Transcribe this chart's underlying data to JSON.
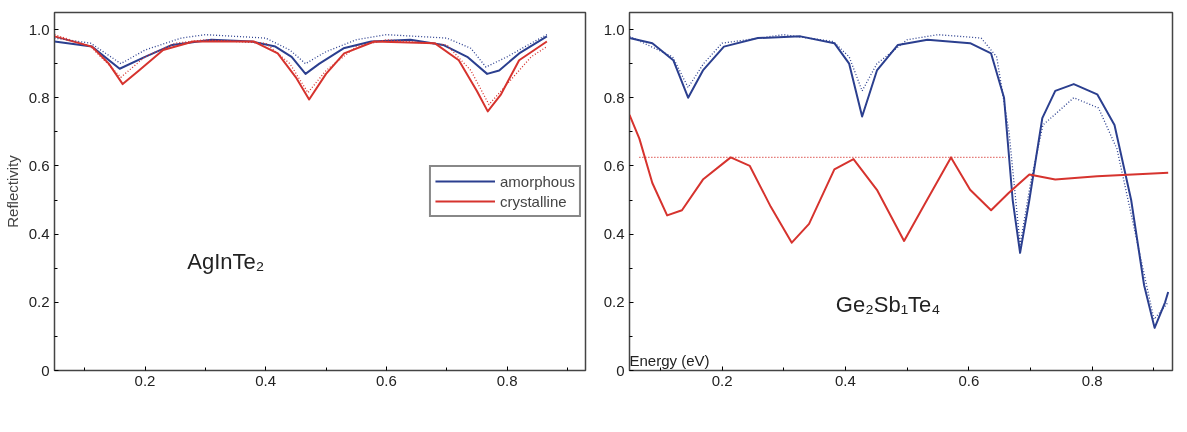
{
  "chart_data": [
    {
      "type": "line",
      "ylabel": "Reflectivity",
      "annotations": [
        "AgInTe₂"
      ],
      "xlim": [
        0.05,
        0.93
      ],
      "ylim": [
        0,
        1.05
      ],
      "xticks": [
        {
          "value": 0.1,
          "label": null
        },
        0.2,
        {
          "value": 0.3,
          "label": null
        },
        0.4,
        {
          "value": 0.5,
          "label": null
        },
        0.6,
        {
          "value": 0.7,
          "label": null
        },
        0.8,
        {
          "value": 0.9,
          "label": null
        }
      ],
      "yticks": [
        0,
        {
          "value": 0.1,
          "label": null
        },
        0.2,
        {
          "value": 0.3,
          "label": null
        },
        0.4,
        {
          "value": 0.5,
          "label": null
        },
        0.6,
        {
          "value": 0.7,
          "label": null
        },
        0.8,
        {
          "value": 0.9,
          "label": null
        },
        {
          "value": 1.0,
          "label": "1.0"
        }
      ],
      "grid": false,
      "legend": "right",
      "marker": "none",
      "series": [
        {
          "name": "amorphous",
          "color": "#2b3f8f",
          "line_style": "solid",
          "x": [
            0.05,
            0.112,
            0.158,
            0.2,
            0.245,
            0.31,
            0.377,
            0.416,
            0.443,
            0.466,
            0.489,
            0.529,
            0.575,
            0.64,
            0.694,
            0.734,
            0.767,
            0.787,
            0.82,
            0.866
          ],
          "values": [
            0.965,
            0.95,
            0.885,
            0.92,
            0.955,
            0.97,
            0.965,
            0.95,
            0.92,
            0.87,
            0.9,
            0.945,
            0.965,
            0.97,
            0.955,
            0.92,
            0.87,
            0.88,
            0.93,
            0.98
          ]
        },
        {
          "name": "crystalline",
          "color": "#d6332e",
          "line_style": "solid",
          "x": [
            0.05,
            0.112,
            0.14,
            0.163,
            0.19,
            0.23,
            0.28,
            0.38,
            0.42,
            0.45,
            0.472,
            0.5,
            0.53,
            0.58,
            0.68,
            0.72,
            0.75,
            0.768,
            0.79,
            0.82,
            0.866
          ],
          "values": [
            0.98,
            0.95,
            0.9,
            0.84,
            0.88,
            0.94,
            0.965,
            0.965,
            0.93,
            0.86,
            0.795,
            0.87,
            0.93,
            0.965,
            0.96,
            0.91,
            0.82,
            0.76,
            0.81,
            0.91,
            0.965
          ]
        },
        {
          "color": "#2b3f8f",
          "line_style": "dotted",
          "x": [
            0.05,
            0.11,
            0.16,
            0.2,
            0.26,
            0.3,
            0.4,
            0.44,
            0.466,
            0.5,
            0.55,
            0.6,
            0.7,
            0.74,
            0.765,
            0.8,
            0.84,
            0.866
          ],
          "values": [
            0.975,
            0.96,
            0.9,
            0.94,
            0.975,
            0.985,
            0.975,
            0.94,
            0.9,
            0.935,
            0.97,
            0.985,
            0.975,
            0.945,
            0.89,
            0.92,
            0.96,
            0.985
          ]
        },
        {
          "color": "#d6332e",
          "line_style": "dotted",
          "x": [
            0.05,
            0.11,
            0.16,
            0.2,
            0.25,
            0.3,
            0.4,
            0.44,
            0.47,
            0.5,
            0.55,
            0.6,
            0.7,
            0.74,
            0.77,
            0.8,
            0.84,
            0.866
          ],
          "values": [
            0.985,
            0.95,
            0.86,
            0.92,
            0.96,
            0.97,
            0.96,
            0.9,
            0.815,
            0.88,
            0.95,
            0.97,
            0.955,
            0.88,
            0.78,
            0.84,
            0.92,
            0.95
          ]
        }
      ]
    },
    {
      "type": "line",
      "xlabel": "Energy (eV)",
      "annotations": [
        "Ge₂Sb₁Te₄"
      ],
      "xlim": [
        0.05,
        0.93
      ],
      "ylim": [
        0,
        1.05
      ],
      "xticks": [
        {
          "value": 0.1,
          "label": null
        },
        0.2,
        {
          "value": 0.3,
          "label": null
        },
        0.4,
        {
          "value": 0.5,
          "label": null
        },
        0.6,
        {
          "value": 0.7,
          "label": null
        },
        0.8,
        {
          "value": 0.9,
          "label": null
        }
      ],
      "yticks": [
        0,
        {
          "value": 0.1,
          "label": null
        },
        0.2,
        {
          "value": 0.3,
          "label": null
        },
        0.4,
        {
          "value": 0.5,
          "label": null
        },
        0.6,
        {
          "value": 0.7,
          "label": null
        },
        0.8,
        {
          "value": 0.9,
          "label": null
        },
        {
          "value": 1.0,
          "label": "1.0"
        }
      ],
      "grid": false,
      "marker": "none",
      "series": [
        {
          "color": "#2b3f8f",
          "line_style": "solid",
          "x": [
            0.05,
            0.087,
            0.121,
            0.145,
            0.169,
            0.203,
            0.258,
            0.327,
            0.382,
            0.406,
            0.427,
            0.451,
            0.485,
            0.533,
            0.602,
            0.636,
            0.657,
            0.671,
            0.683,
            0.698,
            0.719,
            0.74,
            0.77,
            0.808,
            0.836,
            0.863,
            0.884,
            0.901,
            0.918,
            0.923
          ],
          "values": [
            0.975,
            0.96,
            0.91,
            0.8,
            0.88,
            0.95,
            0.975,
            0.98,
            0.96,
            0.9,
            0.745,
            0.88,
            0.955,
            0.97,
            0.96,
            0.93,
            0.8,
            0.5,
            0.345,
            0.5,
            0.74,
            0.82,
            0.84,
            0.81,
            0.72,
            0.5,
            0.25,
            0.125,
            0.2,
            0.23
          ]
        },
        {
          "color": "#2b3f8f",
          "line_style": "dotted",
          "x": [
            0.05,
            0.12,
            0.145,
            0.17,
            0.2,
            0.3,
            0.38,
            0.406,
            0.427,
            0.451,
            0.5,
            0.55,
            0.62,
            0.645,
            0.665,
            0.683,
            0.7,
            0.72,
            0.77,
            0.81,
            0.84,
            0.87,
            0.9,
            0.923
          ],
          "values": [
            0.98,
            0.92,
            0.83,
            0.9,
            0.96,
            0.985,
            0.965,
            0.92,
            0.82,
            0.9,
            0.97,
            0.985,
            0.975,
            0.92,
            0.7,
            0.37,
            0.55,
            0.72,
            0.8,
            0.77,
            0.65,
            0.4,
            0.15,
            0.2
          ]
        },
        {
          "color": "#d6332e",
          "line_style": "solid",
          "x": [
            0.05,
            0.066,
            0.087,
            0.111,
            0.135,
            0.169,
            0.214,
            0.245,
            0.279,
            0.313,
            0.341,
            0.382,
            0.413,
            0.451,
            0.495,
            0.526,
            0.571,
            0.602,
            0.636,
            0.664,
            0.698,
            0.74,
            0.808,
            0.923
          ],
          "values": [
            0.75,
            0.68,
            0.55,
            0.455,
            0.47,
            0.56,
            0.625,
            0.6,
            0.48,
            0.375,
            0.43,
            0.59,
            0.62,
            0.53,
            0.38,
            0.48,
            0.625,
            0.53,
            0.47,
            0.52,
            0.575,
            0.56,
            0.57,
            0.58
          ]
        },
        {
          "color": "#d6332e",
          "line_style": "dotted",
          "x": [
            0.066,
            0.66
          ],
          "values": [
            0.625,
            0.625
          ]
        }
      ]
    }
  ]
}
